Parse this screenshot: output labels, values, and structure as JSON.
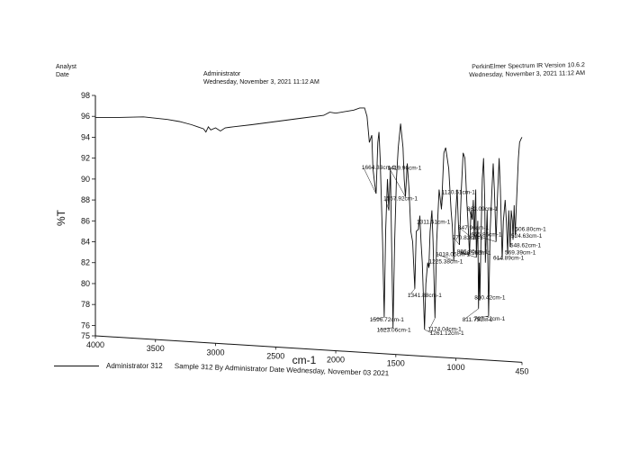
{
  "header": {
    "left_line1": "Analyst",
    "left_line2": "Date",
    "mid_line1": "Administrator",
    "mid_line2": "Wednesday, November 3, 2021 11:12 AM",
    "right_line1": "PerkinElmer Spectrum IR Version 10.6.2",
    "right_line2": "Wednesday, November 3, 2021 11:12 AM"
  },
  "legend": {
    "name": "Administrator 312",
    "description": "Sample 312 By Administrator Date Wednesday, November 03 2021"
  },
  "chart_data": {
    "type": "line",
    "xlabel": "cm-1",
    "ylabel": "%T",
    "xlim": [
      4000,
      450
    ],
    "ylim": [
      75,
      98
    ],
    "x_ticks": [
      "4000",
      "3500",
      "3000",
      "2500",
      "2000",
      "1500",
      "1000",
      "450"
    ],
    "y_ticks": [
      "98",
      "96",
      "94",
      "92",
      "90",
      "88",
      "86",
      "84",
      "82",
      "80",
      "78",
      "76",
      "75"
    ],
    "series": [
      {
        "name": "Administrator 312",
        "points": [
          [
            4000,
            95.9
          ],
          [
            3800,
            95.9
          ],
          [
            3600,
            95.95
          ],
          [
            3400,
            95.7
          ],
          [
            3300,
            95.5
          ],
          [
            3200,
            95.2
          ],
          [
            3150,
            95.0
          ],
          [
            3100,
            94.8
          ],
          [
            3080,
            94.5
          ],
          [
            3060,
            95.0
          ],
          [
            3040,
            94.7
          ],
          [
            3000,
            94.9
          ],
          [
            2960,
            94.6
          ],
          [
            2920,
            94.9
          ],
          [
            2850,
            95.0
          ],
          [
            2700,
            95.2
          ],
          [
            2500,
            95.5
          ],
          [
            2300,
            95.8
          ],
          [
            2100,
            96.1
          ],
          [
            2050,
            96.4
          ],
          [
            2000,
            96.3
          ],
          [
            1900,
            96.5
          ],
          [
            1850,
            96.6
          ],
          [
            1800,
            96.8
          ],
          [
            1760,
            96.8
          ],
          [
            1740,
            96.0
          ],
          [
            1720,
            93.5
          ],
          [
            1700,
            94.2
          ],
          [
            1690,
            91.0
          ],
          [
            1675,
            89.5
          ],
          [
            1664.33,
            88.6
          ],
          [
            1650,
            93.5
          ],
          [
            1640,
            94.5
          ],
          [
            1630,
            92.0
          ],
          [
            1610,
            84.0
          ],
          [
            1596.72,
            76.8
          ],
          [
            1585,
            85.0
          ],
          [
            1570,
            90.0
          ],
          [
            1557.92,
            87.0
          ],
          [
            1545,
            91.0
          ],
          [
            1535,
            84.0
          ],
          [
            1523.06,
            75.8
          ],
          [
            1510,
            84.0
          ],
          [
            1495,
            90.0
          ],
          [
            1480,
            93.0
          ],
          [
            1460,
            95.3
          ],
          [
            1440,
            93.0
          ],
          [
            1430,
            90.0
          ],
          [
            1419.96,
            88.3
          ],
          [
            1405,
            91.5
          ],
          [
            1390,
            89.0
          ],
          [
            1375,
            85.0
          ],
          [
            1360,
            84.0
          ],
          [
            1341.88,
            79.5
          ],
          [
            1330,
            85.0
          ],
          [
            1311.51,
            85.2
          ],
          [
            1300,
            86.5
          ],
          [
            1290,
            84.0
          ],
          [
            1280,
            82.0
          ],
          [
            1261.12,
            75.6
          ],
          [
            1250,
            80.0
          ],
          [
            1235,
            82.0
          ],
          [
            1225.38,
            81.5
          ],
          [
            1215,
            85.0
          ],
          [
            1200,
            87.0
          ],
          [
            1190,
            84.0
          ],
          [
            1174.04,
            76.7
          ],
          [
            1160,
            84.0
          ],
          [
            1140,
            89.0
          ],
          [
            1120.51,
            87.1
          ],
          [
            1100,
            92.5
          ],
          [
            1085,
            93.0
          ],
          [
            1060,
            91.0
          ],
          [
            1040,
            87.0
          ],
          [
            1030,
            85.5
          ],
          [
            1018.05,
            82.2
          ],
          [
            1005,
            86.0
          ],
          [
            990,
            89.0
          ],
          [
            980,
            86.0
          ],
          [
            970.83,
            83.7
          ],
          [
            955,
            89.0
          ],
          [
            940,
            92.5
          ],
          [
            925,
            92.0
          ],
          [
            910,
            88.0
          ],
          [
            900,
            86.0
          ],
          [
            886.8,
            82.8
          ],
          [
            875,
            87.0
          ],
          [
            863.09,
            86.1
          ],
          [
            855,
            88.0
          ],
          [
            847.96,
            84.2
          ],
          [
            835,
            89.0
          ],
          [
            829.56,
            82.5
          ],
          [
            818,
            86.0
          ],
          [
            811.75,
            77.6
          ],
          [
            805,
            82.0
          ],
          [
            800.42,
            78.4
          ],
          [
            790,
            85.0
          ],
          [
            780,
            90.0
          ],
          [
            770,
            92.0
          ],
          [
            760,
            88.0
          ],
          [
            755,
            82.0
          ],
          [
            740,
            87.0
          ],
          [
            727.72,
            76.9
          ],
          [
            715,
            85.0
          ],
          [
            700,
            89.0
          ],
          [
            690,
            91.5
          ],
          [
            680,
            89.0
          ],
          [
            665.86,
            84.0
          ],
          [
            655,
            88.0
          ],
          [
            640,
            92.0
          ],
          [
            630,
            89.0
          ],
          [
            614.89,
            82.3
          ],
          [
            605,
            86.0
          ],
          [
            590,
            88.0
          ],
          [
            580,
            86.0
          ],
          [
            569.39,
            82.8
          ],
          [
            560,
            87.0
          ],
          [
            548.62,
            83.5
          ],
          [
            540,
            87.0
          ],
          [
            530,
            86.0
          ],
          [
            524.63,
            84.2
          ],
          [
            515,
            87.5
          ],
          [
            506.8,
            84.6
          ],
          [
            495,
            88.0
          ],
          [
            480,
            92.0
          ],
          [
            470,
            93.5
          ],
          [
            460,
            93.8
          ],
          [
            450,
            94.0
          ]
        ]
      }
    ],
    "annotations": [
      {
        "label": "1664.33cm-1",
        "x": 1664.33,
        "y": 88.6
      },
      {
        "label": "1419.96cm-1",
        "x": 1419.96,
        "y": 88.3
      },
      {
        "label": "1557.92cm-1",
        "x": 1557.92,
        "y": 87.0
      },
      {
        "label": "1120.51cm-1",
        "x": 1120.51,
        "y": 87.1
      },
      {
        "label": "863.09cm-1",
        "x": 863.09,
        "y": 86.1
      },
      {
        "label": "1311.51cm-1",
        "x": 1311.51,
        "y": 85.2
      },
      {
        "label": "506.80cm-1",
        "x": 506.8,
        "y": 84.6
      },
      {
        "label": "524.63cm-1",
        "x": 524.63,
        "y": 84.2
      },
      {
        "label": "847.96cm-1",
        "x": 847.96,
        "y": 84.2
      },
      {
        "label": "548.62cm-1",
        "x": 548.62,
        "y": 83.5
      },
      {
        "label": "569.39cm-1",
        "x": 569.39,
        "y": 82.8
      },
      {
        "label": "970.83cm-1",
        "x": 970.83,
        "y": 83.7
      },
      {
        "label": "886.80cm-1",
        "x": 886.8,
        "y": 82.8
      },
      {
        "label": "1018.05cm-1",
        "x": 1018.05,
        "y": 82.2
      },
      {
        "label": "829.56cm-1",
        "x": 829.56,
        "y": 82.5
      },
      {
        "label": "614.89cm-1",
        "x": 614.89,
        "y": 82.3
      },
      {
        "label": "665.86cm-1",
        "x": 665.86,
        "y": 84.0
      },
      {
        "label": "1225.38cm-1",
        "x": 1225.38,
        "y": 81.5
      },
      {
        "label": "1341.88cm-1",
        "x": 1341.88,
        "y": 79.5
      },
      {
        "label": "800.42cm-1",
        "x": 800.42,
        "y": 78.4
      },
      {
        "label": "811.75cm-1",
        "x": 811.75,
        "y": 77.6
      },
      {
        "label": "727.72cm-1",
        "x": 727.72,
        "y": 76.9
      },
      {
        "label": "1596.72cm-1",
        "x": 1596.72,
        "y": 76.8
      },
      {
        "label": "1174.04cm-1",
        "x": 1174.04,
        "y": 76.7
      },
      {
        "label": "1523.06cm-1",
        "x": 1523.06,
        "y": 75.8
      },
      {
        "label": "1261.12cm-1",
        "x": 1261.12,
        "y": 75.6
      }
    ]
  }
}
